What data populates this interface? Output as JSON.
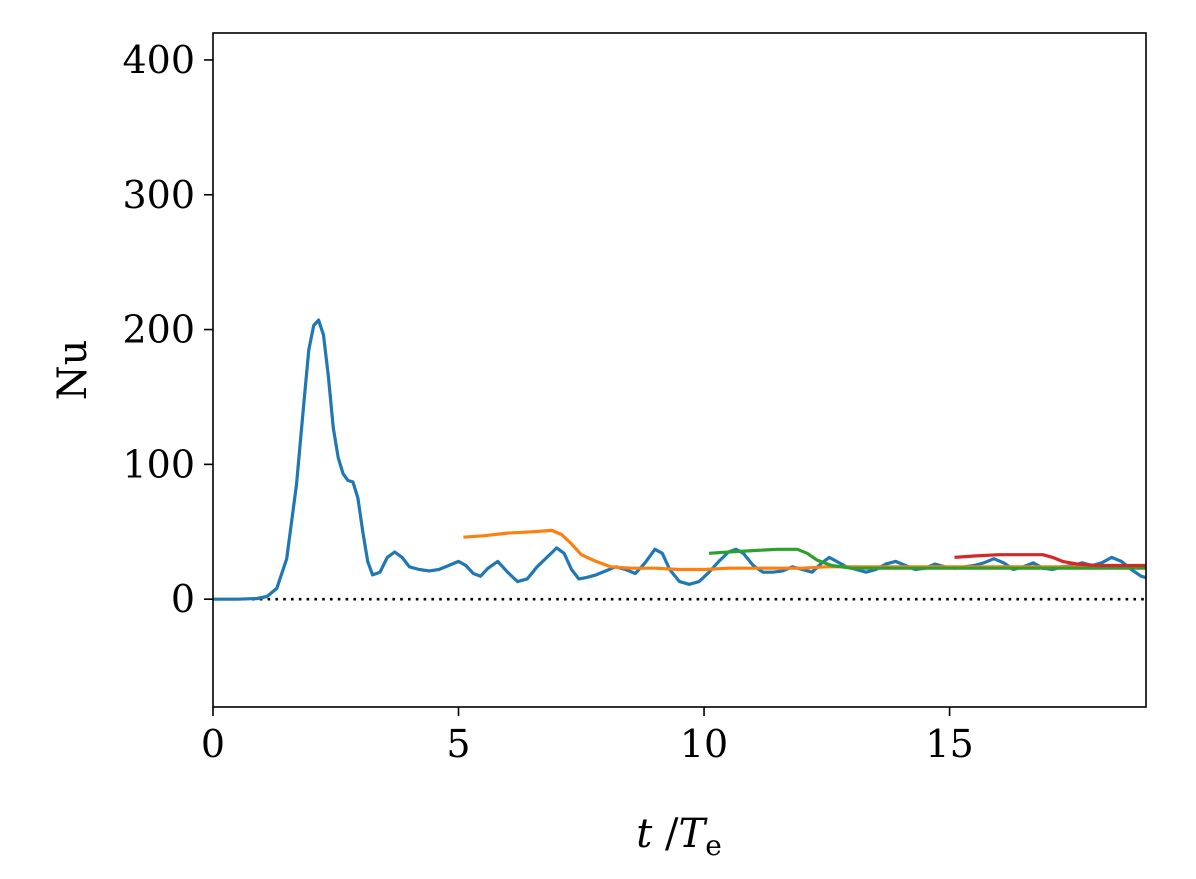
{
  "chart_data": {
    "type": "line",
    "xlabel": {
      "var": "t",
      "sep": " /",
      "base": "T",
      "sub": "e"
    },
    "ylabel": "Nu",
    "xlim": [
      0,
      19
    ],
    "ylim": [
      -80,
      420
    ],
    "xticks": [
      0,
      5,
      10,
      15
    ],
    "xtick_labels": [
      "0",
      "5",
      "10",
      "15"
    ],
    "yticks": [
      0,
      100,
      200,
      300,
      400
    ],
    "ytick_labels": [
      "0",
      "100",
      "200",
      "300",
      "400"
    ],
    "grid": false,
    "reference_line": {
      "y": 0,
      "style": "dotted",
      "color": "#000000"
    },
    "series": [
      {
        "color": "#1f77b4",
        "points": [
          [
            0,
            0
          ],
          [
            0.5,
            0
          ],
          [
            0.9,
            0.5
          ],
          [
            1.1,
            2
          ],
          [
            1.3,
            8
          ],
          [
            1.5,
            30
          ],
          [
            1.7,
            85
          ],
          [
            1.85,
            145
          ],
          [
            1.95,
            185
          ],
          [
            2.05,
            203
          ],
          [
            2.15,
            207
          ],
          [
            2.25,
            196
          ],
          [
            2.35,
            165
          ],
          [
            2.45,
            127
          ],
          [
            2.55,
            105
          ],
          [
            2.65,
            93
          ],
          [
            2.75,
            88
          ],
          [
            2.85,
            87
          ],
          [
            2.95,
            75
          ],
          [
            3.05,
            50
          ],
          [
            3.15,
            28
          ],
          [
            3.25,
            18
          ],
          [
            3.4,
            20
          ],
          [
            3.55,
            31
          ],
          [
            3.7,
            35
          ],
          [
            3.85,
            31
          ],
          [
            4.0,
            24
          ],
          [
            4.2,
            22
          ],
          [
            4.4,
            21
          ],
          [
            4.6,
            22
          ],
          [
            4.8,
            25
          ],
          [
            5.0,
            28
          ],
          [
            5.15,
            25
          ],
          [
            5.3,
            19
          ],
          [
            5.45,
            17
          ],
          [
            5.6,
            23
          ],
          [
            5.8,
            28
          ],
          [
            6.0,
            20
          ],
          [
            6.2,
            13
          ],
          [
            6.4,
            15
          ],
          [
            6.6,
            24
          ],
          [
            6.8,
            31
          ],
          [
            7.0,
            38
          ],
          [
            7.15,
            34
          ],
          [
            7.3,
            22
          ],
          [
            7.45,
            15
          ],
          [
            7.6,
            16
          ],
          [
            7.8,
            18
          ],
          [
            8.0,
            21
          ],
          [
            8.2,
            24
          ],
          [
            8.4,
            22
          ],
          [
            8.6,
            19
          ],
          [
            8.8,
            27
          ],
          [
            9.0,
            37
          ],
          [
            9.15,
            34
          ],
          [
            9.3,
            22
          ],
          [
            9.5,
            13
          ],
          [
            9.7,
            11
          ],
          [
            9.9,
            13
          ],
          [
            10.1,
            20
          ],
          [
            10.3,
            28
          ],
          [
            10.5,
            35
          ],
          [
            10.65,
            37
          ],
          [
            10.8,
            34
          ],
          [
            11.0,
            25
          ],
          [
            11.2,
            20
          ],
          [
            11.4,
            20
          ],
          [
            11.6,
            21
          ],
          [
            11.8,
            24
          ],
          [
            12.0,
            22
          ],
          [
            12.2,
            20
          ],
          [
            12.4,
            27
          ],
          [
            12.55,
            31
          ],
          [
            12.7,
            28
          ],
          [
            12.9,
            24
          ],
          [
            13.1,
            22
          ],
          [
            13.3,
            20
          ],
          [
            13.5,
            22
          ],
          [
            13.7,
            26
          ],
          [
            13.9,
            28
          ],
          [
            14.1,
            25
          ],
          [
            14.3,
            22
          ],
          [
            14.5,
            23
          ],
          [
            14.7,
            26
          ],
          [
            14.9,
            24
          ],
          [
            15.1,
            23
          ],
          [
            15.3,
            24
          ],
          [
            15.5,
            25
          ],
          [
            15.7,
            27
          ],
          [
            15.9,
            30
          ],
          [
            16.1,
            27
          ],
          [
            16.3,
            22
          ],
          [
            16.5,
            24
          ],
          [
            16.7,
            27
          ],
          [
            16.9,
            23
          ],
          [
            17.1,
            22
          ],
          [
            17.3,
            24
          ],
          [
            17.5,
            25
          ],
          [
            17.7,
            27
          ],
          [
            17.9,
            25
          ],
          [
            18.1,
            27
          ],
          [
            18.3,
            31
          ],
          [
            18.5,
            28
          ],
          [
            18.7,
            22
          ],
          [
            18.9,
            17
          ],
          [
            19.0,
            16
          ]
        ]
      },
      {
        "color": "#ff7f0e",
        "points": [
          [
            5.1,
            46
          ],
          [
            5.5,
            47
          ],
          [
            6.0,
            49
          ],
          [
            6.5,
            50
          ],
          [
            6.9,
            51
          ],
          [
            7.1,
            48
          ],
          [
            7.3,
            41
          ],
          [
            7.5,
            33
          ],
          [
            7.8,
            28
          ],
          [
            8.1,
            24
          ],
          [
            8.5,
            23
          ],
          [
            9.0,
            23
          ],
          [
            9.5,
            22
          ],
          [
            10.0,
            22
          ],
          [
            10.5,
            23
          ],
          [
            11.0,
            23
          ],
          [
            11.5,
            23
          ],
          [
            12.0,
            23
          ],
          [
            12.5,
            24
          ],
          [
            13.0,
            24
          ],
          [
            13.5,
            24
          ],
          [
            14.0,
            24
          ],
          [
            14.5,
            24
          ],
          [
            15.0,
            24
          ],
          [
            15.5,
            24
          ],
          [
            16.0,
            24
          ],
          [
            16.5,
            24
          ],
          [
            17.0,
            24
          ],
          [
            17.5,
            24
          ],
          [
            18.0,
            24
          ],
          [
            18.5,
            24
          ],
          [
            19.0,
            24
          ]
        ]
      },
      {
        "color": "#2ca02c",
        "points": [
          [
            10.1,
            34
          ],
          [
            10.5,
            35
          ],
          [
            11.0,
            36
          ],
          [
            11.5,
            37
          ],
          [
            11.9,
            37
          ],
          [
            12.1,
            34
          ],
          [
            12.3,
            29
          ],
          [
            12.6,
            25
          ],
          [
            13.0,
            23
          ],
          [
            13.5,
            23
          ],
          [
            14.0,
            23
          ],
          [
            14.5,
            23
          ],
          [
            15.0,
            23
          ],
          [
            15.5,
            23
          ],
          [
            16.0,
            23
          ],
          [
            16.5,
            23
          ],
          [
            17.0,
            23
          ],
          [
            17.5,
            23
          ],
          [
            18.0,
            23
          ],
          [
            18.5,
            23
          ],
          [
            19.0,
            23
          ]
        ]
      },
      {
        "color": "#d62728",
        "points": [
          [
            15.1,
            31
          ],
          [
            15.5,
            32
          ],
          [
            16.0,
            33
          ],
          [
            16.5,
            33
          ],
          [
            16.9,
            33
          ],
          [
            17.1,
            31
          ],
          [
            17.3,
            28
          ],
          [
            17.6,
            26
          ],
          [
            18.0,
            25
          ],
          [
            18.5,
            25
          ],
          [
            19.0,
            25
          ]
        ]
      }
    ]
  }
}
